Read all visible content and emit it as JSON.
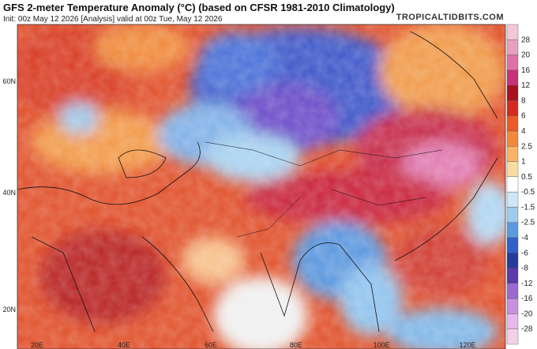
{
  "header": {
    "title": "GFS 2-meter Temperature Anomaly (°C) (based on CFSR 1981-2010 Climatology)",
    "subtitle": "Init: 00z May 12 2026   [Analysis]   valid at 00z Tue, May 12 2026",
    "brand": "TROPICALTIDBITS.COM"
  },
  "colorbar": {
    "labels": [
      "28",
      "20",
      "16",
      "12",
      "8",
      "6",
      "4",
      "2.5",
      "1",
      "0.5",
      "-0.5",
      "-1.5",
      "-2.5",
      "-4",
      "-6",
      "-8",
      "-12",
      "-16",
      "-20",
      "-28"
    ]
  },
  "map": {
    "lat_labels": [
      "60N",
      "40N",
      "20N"
    ],
    "lon_labels": [
      "20E",
      "40E",
      "60E",
      "80E",
      "100E",
      "120E"
    ]
  }
}
